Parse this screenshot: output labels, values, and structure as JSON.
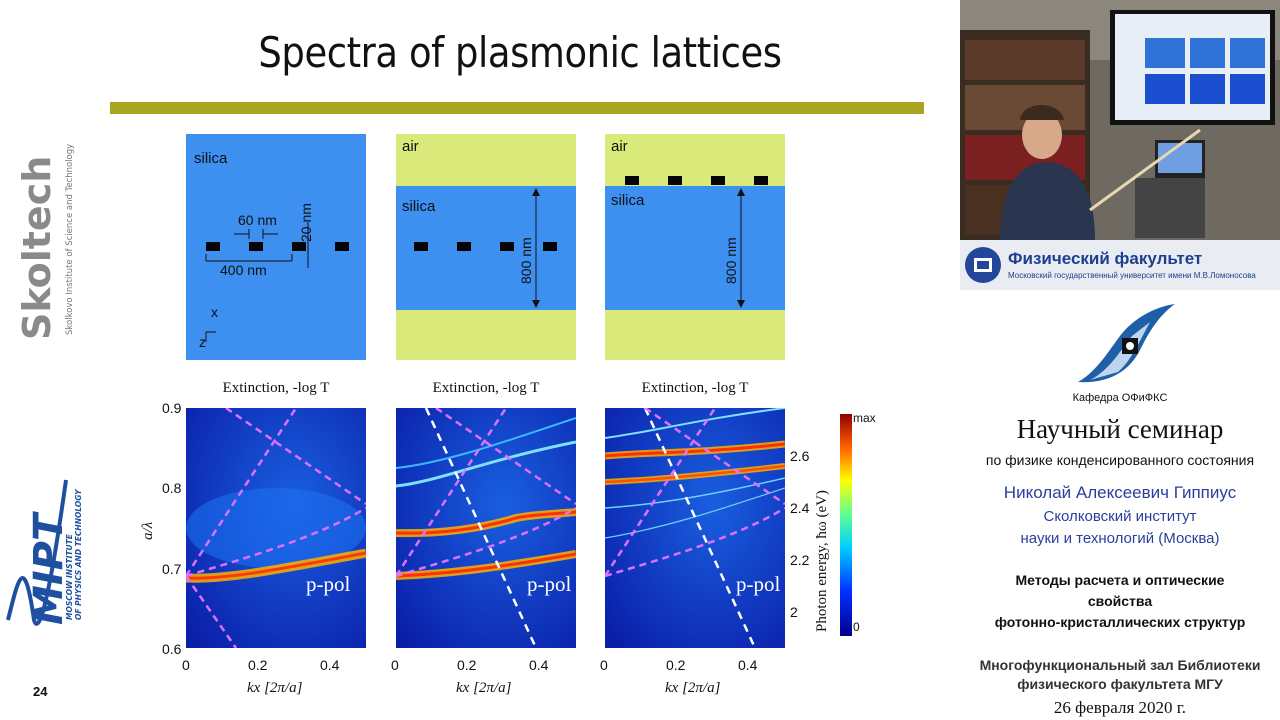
{
  "slide": {
    "title": "Spectra of plasmonic lattices",
    "number": "24",
    "accent_color": "#a7a421"
  },
  "logos": {
    "skoltech": {
      "name": "Skoltech",
      "subtitle": "Skolkovo Institute of Science and Technology",
      "color": "#8a8a8a",
      "accent": "#b3b02a"
    },
    "mipt": {
      "name": "MIPT",
      "subtitle1": "MOSCOW INSTITUTE",
      "subtitle2": "OF PHYSICS AND TECHNOLOGY",
      "color": "#1f4fa0"
    }
  },
  "schematics": [
    {
      "labels": [
        "silica"
      ],
      "dims": [
        "60 nm",
        "400 nm",
        "20 nm"
      ],
      "axes": [
        "x",
        "z"
      ]
    },
    {
      "labels": [
        "air",
        "silica"
      ],
      "dims": [
        "800 nm"
      ]
    },
    {
      "labels": [
        "air",
        "silica"
      ],
      "dims": [
        "800 nm"
      ]
    }
  ],
  "heatmaps": {
    "titles": [
      "Extinction, -log T",
      "Extinction, -log T",
      "Extinction, -log T"
    ],
    "pol_label": "p-pol",
    "y_left_label": "a/λ",
    "y_left_ticks": [
      "0.9",
      "0.8",
      "0.7",
      "0.6"
    ],
    "x_ticks": [
      "0",
      "0.2",
      "0.4"
    ],
    "x_label": "kx [2π/a]",
    "y_right_label": "Photon energy, ħω (eV)",
    "y_right_ticks": [
      "2.6",
      "2.4",
      "2.2",
      "2"
    ],
    "colorbar_max": "max",
    "colorbar_min": "0"
  },
  "sidebar": {
    "faculty_banner_title": "Физический факультет",
    "faculty_banner_subtitle": "Московский государственный университет имени М.В.Ломоносова",
    "department": "Кафедра ОФиФКС",
    "seminar_title": "Научный семинар",
    "seminar_subtitle": "по физике конденсированного состояния",
    "speaker_name": "Николай Алексеевич Гиппиус",
    "speaker_affiliation_1": "Сколковский институт",
    "speaker_affiliation_2": "науки и технологий (Москва)",
    "talk_title_1": "Методы расчета и оптические",
    "talk_title_2": "свойства",
    "talk_title_3": "фотонно-кристаллических структур",
    "venue_1": "Многофункциональный зал Библиотеки",
    "venue_2": "физического факультета МГУ",
    "date": "26 февраля 2020 г.",
    "speaker_color": "#2a3f9e"
  }
}
